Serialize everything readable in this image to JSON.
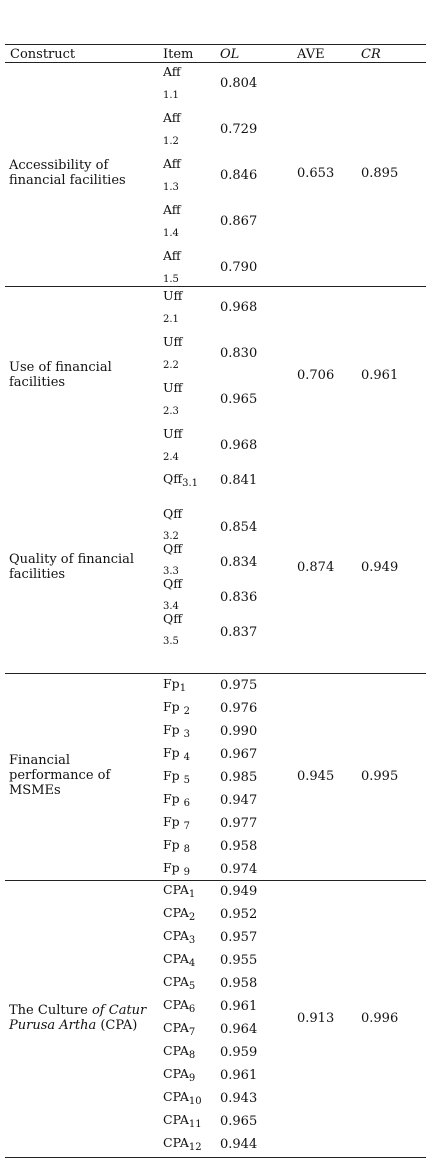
{
  "headers": {
    "construct": "Construct",
    "item": "Item",
    "ol": "OL",
    "ave": "AVE",
    "cr": "CR"
  },
  "groups": [
    {
      "construct_lines": [
        "Accessibility of",
        "financial facilities"
      ],
      "ave": "0.653",
      "cr": "0.895",
      "rows": [
        {
          "item": "Aff",
          "sub": "1.1",
          "ol": "0.804"
        },
        {
          "item": "Aff",
          "sub": "1.2",
          "ol": "0.729"
        },
        {
          "item": "Aff",
          "sub": "1.3",
          "ol": "0.846"
        },
        {
          "item": "Aff",
          "sub": "1.4",
          "ol": "0.867"
        },
        {
          "item": "Aff",
          "sub": "1.5",
          "ol": "0.790"
        }
      ]
    },
    {
      "construct_lines": [
        "Use of financial",
        "facilities"
      ],
      "ave": "0.706",
      "cr": "0.961",
      "rows": [
        {
          "item": "Uff",
          "sub": "2.1",
          "ol": "0.968"
        },
        {
          "item": "Uff",
          "sub": "2.2",
          "ol": "0.830"
        },
        {
          "item": "Uff",
          "sub": "2.3",
          "ol": "0.965"
        },
        {
          "item": "Uff",
          "sub": "2.4",
          "ol": "0.968"
        }
      ]
    },
    {
      "construct_lines": [
        "Quality of financial",
        "facilities"
      ],
      "ave": "0.874",
      "cr": "0.949",
      "rows": [
        {
          "item": "Qff",
          "sub": "3.1",
          "ol": "0.841"
        },
        {
          "item": "Qff",
          "sub": "3.2",
          "ol": "0.854"
        },
        {
          "item": "Qff",
          "sub": "3.3",
          "ol": "0.834"
        },
        {
          "item": "Qff",
          "sub": "3.4",
          "ol": "0.836"
        },
        {
          "item": "Qff",
          "sub": "3.5",
          "ol": "0.837"
        }
      ]
    },
    {
      "construct_lines": [
        "Financial",
        "performance of",
        "MSMEs"
      ],
      "ave": "0.945",
      "cr": "0.995",
      "rows": [
        {
          "item": "Fp",
          "sub": "1",
          "ol": "0.975"
        },
        {
          "item": "Fp ",
          "sub": "2",
          "ol": "0.976"
        },
        {
          "item": "Fp ",
          "sub": "3",
          "ol": "0.990"
        },
        {
          "item": "Fp ",
          "sub": "4",
          "ol": "0.967"
        },
        {
          "item": "Fp ",
          "sub": "5",
          "ol": "0.985"
        },
        {
          "item": "Fp ",
          "sub": "6",
          "ol": "0.947"
        },
        {
          "item": "Fp ",
          "sub": "7",
          "ol": "0.977"
        },
        {
          "item": "Fp ",
          "sub": "8",
          "ol": "0.958"
        },
        {
          "item": "Fp ",
          "sub": "9",
          "ol": "0.974"
        }
      ]
    },
    {
      "construct_parts": [
        {
          "text": "The Culture ",
          "italic": false
        },
        {
          "text": "of Catur",
          "italic": true
        },
        {
          "text": "\n",
          "italic": false
        },
        {
          "text": "Purusa Artha",
          "italic": true
        },
        {
          "text": " (CPA)",
          "italic": false
        }
      ],
      "ave": "0.913",
      "cr": "0.996",
      "rows": [
        {
          "item": "CPA",
          "sub": "1",
          "ol": "0.949"
        },
        {
          "item": "CPA",
          "sub": "2",
          "ol": "0.952"
        },
        {
          "item": "CPA",
          "sub": "3",
          "ol": "0.957"
        },
        {
          "item": "CPA",
          "sub": "4",
          "ol": "0.955"
        },
        {
          "item": "CPA",
          "sub": "5",
          "ol": "0.958"
        },
        {
          "item": "CPA",
          "sub": "6",
          "ol": "0.961"
        },
        {
          "item": "CPA",
          "sub": "7",
          "ol": "0.964"
        },
        {
          "item": "CPA",
          "sub": "8",
          "ol": "0.959"
        },
        {
          "item": "CPA",
          "sub": "9",
          "ol": "0.961"
        },
        {
          "item": "CPA",
          "sub": "10",
          "ol": "0.943"
        },
        {
          "item": "CPA",
          "sub": "11",
          "ol": "0.965"
        },
        {
          "item": "CPA",
          "sub": "12",
          "ol": "0.944"
        }
      ]
    }
  ]
}
